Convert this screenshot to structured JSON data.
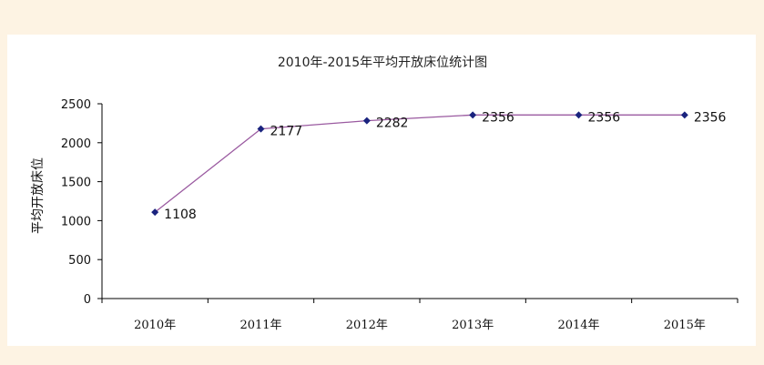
{
  "chart_data": {
    "type": "line",
    "title": "2010年-2015年平均开放床位统计图",
    "xlabel": "",
    "ylabel": "平均开放床位",
    "categories": [
      "2010年",
      "2011年",
      "2012年",
      "2013年",
      "2014年",
      "2015年"
    ],
    "series": [
      {
        "values": [
          1108,
          2177,
          2282,
          2356,
          2356,
          2356
        ],
        "data_labels": [
          "1108",
          "2177",
          "2282",
          "2356",
          "2356",
          "2356"
        ],
        "line_color": "#9a5aa0",
        "marker_color": "#1a237e"
      }
    ],
    "yticks": [
      "0",
      "500",
      "1000",
      "1500",
      "2000",
      "2500"
    ],
    "ylim": [
      0,
      2500
    ],
    "grid": false,
    "legend": "none"
  },
  "colors": {
    "page_background": "#fdf3e3",
    "plot_background": "#ffffff",
    "axis": "#000000"
  }
}
